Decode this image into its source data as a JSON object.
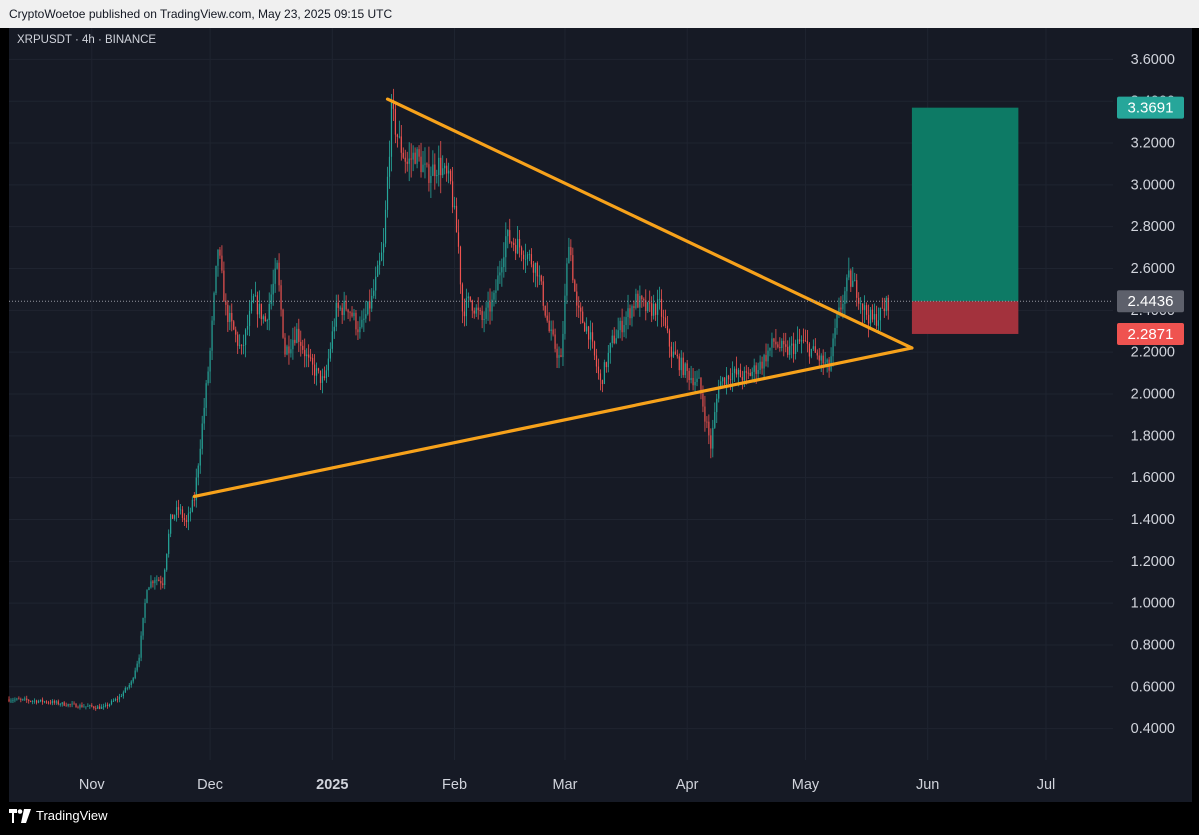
{
  "header": {
    "published_text": "CryptoWoetoe published on TradingView.com, May 23, 2025 09:15 UTC"
  },
  "symbol_info": "XRPUSDT · 4h · BINANCE",
  "footer": {
    "brand": "TradingView"
  },
  "colors": {
    "background": "#161a25",
    "grid": "#1f2430",
    "axis_text": "#d1d4dc",
    "up": "#26a69a",
    "down": "#ef5350",
    "trendline": "#f7a21b",
    "target_zone": "#0d7a65",
    "stop_zone": "#a3323d",
    "current_price_label": "#5d606b"
  },
  "chart_data": {
    "type": "candlestick",
    "symbol": "XRPUSDT",
    "interval": "4h",
    "exchange": "BINANCE",
    "x_ticks": [
      {
        "date": "2024-11-01",
        "label": "Nov",
        "bold": false
      },
      {
        "date": "2024-12-01",
        "label": "Dec",
        "bold": false
      },
      {
        "date": "2025-01-01",
        "label": "2025",
        "bold": true
      },
      {
        "date": "2025-02-01",
        "label": "Feb",
        "bold": false
      },
      {
        "date": "2025-03-01",
        "label": "Mar",
        "bold": false
      },
      {
        "date": "2025-04-01",
        "label": "Apr",
        "bold": false
      },
      {
        "date": "2025-05-01",
        "label": "May",
        "bold": false
      },
      {
        "date": "2025-06-01",
        "label": "Jun",
        "bold": false
      },
      {
        "date": "2025-07-01",
        "label": "Jul",
        "bold": false
      }
    ],
    "xlim": [
      "2024-10-11",
      "2025-07-18"
    ],
    "y_ticks": [
      "3.6000",
      "3.4000",
      "3.2000",
      "3.0000",
      "2.8000",
      "2.6000",
      "2.4000",
      "2.2000",
      "2.0000",
      "1.8000",
      "1.6000",
      "1.4000",
      "1.2000",
      "1.0000",
      "0.8000",
      "0.6000",
      "0.4000"
    ],
    "ylim": [
      0.25,
      3.75
    ],
    "price_path": [
      [
        "2024-10-11",
        0.54
      ],
      [
        "2024-10-20",
        0.53
      ],
      [
        "2024-10-28",
        0.51
      ],
      [
        "2024-11-04",
        0.5
      ],
      [
        "2024-11-08",
        0.55
      ],
      [
        "2024-11-11",
        0.62
      ],
      [
        "2024-11-13",
        0.75
      ],
      [
        "2024-11-15",
        1.08
      ],
      [
        "2024-11-17",
        1.12
      ],
      [
        "2024-11-19",
        1.1
      ],
      [
        "2024-11-21",
        1.4
      ],
      [
        "2024-11-23",
        1.45
      ],
      [
        "2024-11-25",
        1.38
      ],
      [
        "2024-11-27",
        1.5
      ],
      [
        "2024-11-29",
        1.85
      ],
      [
        "2024-12-01",
        2.2
      ],
      [
        "2024-12-03",
        2.7
      ],
      [
        "2024-12-05",
        2.4
      ],
      [
        "2024-12-07",
        2.3
      ],
      [
        "2024-12-09",
        2.2
      ],
      [
        "2024-12-12",
        2.45
      ],
      [
        "2024-12-15",
        2.35
      ],
      [
        "2024-12-18",
        2.6
      ],
      [
        "2024-12-20",
        2.2
      ],
      [
        "2024-12-23",
        2.3
      ],
      [
        "2024-12-26",
        2.15
      ],
      [
        "2024-12-30",
        2.05
      ],
      [
        "2025-01-02",
        2.4
      ],
      [
        "2025-01-05",
        2.42
      ],
      [
        "2025-01-08",
        2.3
      ],
      [
        "2025-01-11",
        2.45
      ],
      [
        "2025-01-14",
        2.7
      ],
      [
        "2025-01-16",
        3.35
      ],
      [
        "2025-01-18",
        3.2
      ],
      [
        "2025-01-20",
        3.1
      ],
      [
        "2025-01-22",
        3.15
      ],
      [
        "2025-01-25",
        3.05
      ],
      [
        "2025-01-28",
        3.1
      ],
      [
        "2025-01-31",
        3.0
      ],
      [
        "2025-02-02",
        2.7
      ],
      [
        "2025-02-03",
        2.4
      ],
      [
        "2025-02-05",
        2.45
      ],
      [
        "2025-02-08",
        2.35
      ],
      [
        "2025-02-11",
        2.45
      ],
      [
        "2025-02-14",
        2.75
      ],
      [
        "2025-02-18",
        2.7
      ],
      [
        "2025-02-22",
        2.6
      ],
      [
        "2025-02-25",
        2.3
      ],
      [
        "2025-02-28",
        2.15
      ],
      [
        "2025-03-02",
        2.75
      ],
      [
        "2025-03-04",
        2.4
      ],
      [
        "2025-03-07",
        2.3
      ],
      [
        "2025-03-10",
        2.05
      ],
      [
        "2025-03-13",
        2.25
      ],
      [
        "2025-03-16",
        2.35
      ],
      [
        "2025-03-19",
        2.45
      ],
      [
        "2025-03-22",
        2.4
      ],
      [
        "2025-03-25",
        2.42
      ],
      [
        "2025-03-28",
        2.2
      ],
      [
        "2025-04-01",
        2.1
      ],
      [
        "2025-04-04",
        2.05
      ],
      [
        "2025-04-07",
        1.75
      ],
      [
        "2025-04-09",
        2.05
      ],
      [
        "2025-04-12",
        2.1
      ],
      [
        "2025-04-16",
        2.08
      ],
      [
        "2025-04-20",
        2.15
      ],
      [
        "2025-04-23",
        2.25
      ],
      [
        "2025-04-26",
        2.2
      ],
      [
        "2025-04-30",
        2.25
      ],
      [
        "2025-05-03",
        2.2
      ],
      [
        "2025-05-07",
        2.12
      ],
      [
        "2025-05-09",
        2.35
      ],
      [
        "2025-05-12",
        2.55
      ],
      [
        "2025-05-14",
        2.5
      ],
      [
        "2025-05-16",
        2.4
      ],
      [
        "2025-05-18",
        2.35
      ],
      [
        "2025-05-20",
        2.38
      ],
      [
        "2025-05-22",
        2.44
      ]
    ],
    "upper_trendline": [
      [
        "2025-01-15",
        3.41
      ],
      [
        "2025-05-28",
        2.22
      ]
    ],
    "lower_trendline": [
      [
        "2024-11-27",
        1.51
      ],
      [
        "2025-05-28",
        2.22
      ]
    ],
    "position": {
      "entry": 2.4436,
      "target": 3.3691,
      "stop": 2.2871,
      "start_date": "2025-05-28",
      "end_date": "2025-06-24"
    },
    "current_price": 2.4436,
    "target_label": "3.3691",
    "current_label": "2.4436",
    "stop_label": "2.2871"
  }
}
